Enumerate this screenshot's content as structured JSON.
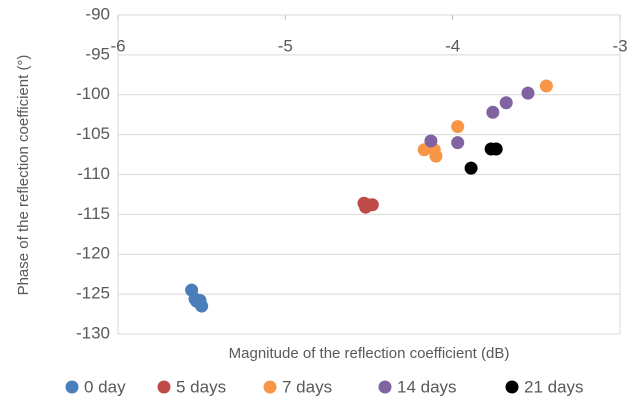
{
  "chart_data": {
    "type": "scatter",
    "x_label": "Magnitude of the reflection coefficient (dB)",
    "y_label": "Phase of the reflection coefficient (°)",
    "xlim": [
      -6,
      -3
    ],
    "xticks": [
      -6,
      -5,
      -4,
      -3
    ],
    "ylim": [
      -130,
      -90
    ],
    "yticks": [
      -130,
      -125,
      -120,
      -115,
      -110,
      -105,
      -100,
      -95,
      -90
    ],
    "grid": true,
    "legend": "bottom",
    "series": [
      {
        "name": "0 day",
        "color": "#4a7ebb",
        "x": [
          -5.56,
          -5.54,
          -5.51,
          -5.5,
          -5.53
        ],
        "values": [
          -124.5,
          -125.6,
          -125.8,
          -126.5,
          -125.9
        ]
      },
      {
        "name": "5 days",
        "color": "#be4b48",
        "x": [
          -4.53,
          -4.52,
          -4.48,
          -4.51
        ],
        "values": [
          -113.6,
          -114.1,
          -113.8,
          -113.8
        ]
      },
      {
        "name": "7 days",
        "color": "#f79646",
        "x": [
          -4.17,
          -4.11,
          -4.1,
          -3.97,
          -3.44
        ],
        "values": [
          -106.9,
          -106.9,
          -107.7,
          -104.0,
          -98.9
        ]
      },
      {
        "name": "14 days",
        "color": "#8064a2",
        "x": [
          -4.13,
          -3.97,
          -3.76,
          -3.68,
          -3.55
        ],
        "values": [
          -105.8,
          -106.0,
          -102.2,
          -101.0,
          -99.8
        ]
      },
      {
        "name": "21 days",
        "color": "#000000",
        "x": [
          -3.89,
          -3.77,
          -3.74
        ],
        "values": [
          -109.2,
          -106.8,
          -106.8
        ]
      }
    ]
  }
}
